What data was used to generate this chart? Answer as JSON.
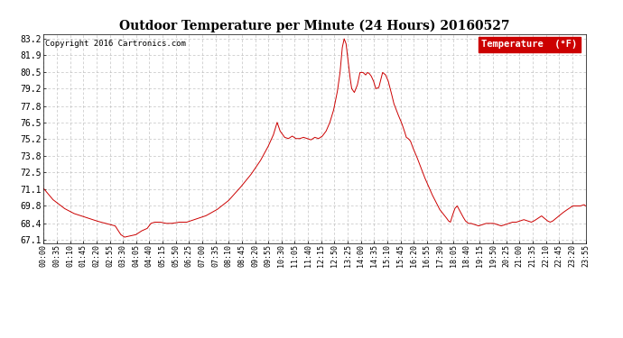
{
  "title": "Outdoor Temperature per Minute (24 Hours) 20160527",
  "copyright_text": "Copyright 2016 Cartronics.com",
  "legend_label": "Temperature  (°F)",
  "line_color": "#cc0000",
  "background_color": "#ffffff",
  "grid_color": "#bbbbbb",
  "yticks": [
    67.1,
    68.4,
    69.8,
    71.1,
    72.5,
    73.8,
    75.2,
    76.5,
    77.8,
    79.2,
    80.5,
    81.9,
    83.2
  ],
  "ylim": [
    66.8,
    83.6
  ],
  "xtick_labels": [
    "00:00",
    "00:35",
    "01:10",
    "01:45",
    "02:20",
    "02:55",
    "03:30",
    "04:05",
    "04:40",
    "05:15",
    "05:50",
    "06:25",
    "07:00",
    "07:35",
    "08:10",
    "08:45",
    "09:20",
    "09:55",
    "10:30",
    "11:05",
    "11:40",
    "12:15",
    "12:50",
    "13:25",
    "14:00",
    "14:35",
    "15:10",
    "15:45",
    "16:20",
    "16:55",
    "17:30",
    "18:05",
    "18:40",
    "19:15",
    "19:50",
    "20:25",
    "21:00",
    "21:35",
    "22:10",
    "22:45",
    "23:20",
    "23:55"
  ],
  "keypoints": [
    [
      0,
      71.2
    ],
    [
      25,
      70.3
    ],
    [
      55,
      69.6
    ],
    [
      80,
      69.2
    ],
    [
      110,
      68.9
    ],
    [
      140,
      68.6
    ],
    [
      165,
      68.4
    ],
    [
      190,
      68.2
    ],
    [
      205,
      67.5
    ],
    [
      215,
      67.3
    ],
    [
      230,
      67.4
    ],
    [
      245,
      67.5
    ],
    [
      260,
      67.8
    ],
    [
      275,
      68.0
    ],
    [
      285,
      68.4
    ],
    [
      295,
      68.5
    ],
    [
      310,
      68.5
    ],
    [
      325,
      68.4
    ],
    [
      340,
      68.4
    ],
    [
      360,
      68.5
    ],
    [
      380,
      68.5
    ],
    [
      400,
      68.7
    ],
    [
      430,
      69.0
    ],
    [
      460,
      69.5
    ],
    [
      490,
      70.2
    ],
    [
      520,
      71.2
    ],
    [
      550,
      72.3
    ],
    [
      575,
      73.4
    ],
    [
      595,
      74.5
    ],
    [
      610,
      75.5
    ],
    [
      620,
      76.5
    ],
    [
      628,
      75.8
    ],
    [
      640,
      75.3
    ],
    [
      650,
      75.2
    ],
    [
      660,
      75.4
    ],
    [
      670,
      75.2
    ],
    [
      680,
      75.2
    ],
    [
      690,
      75.3
    ],
    [
      700,
      75.2
    ],
    [
      710,
      75.1
    ],
    [
      720,
      75.3
    ],
    [
      730,
      75.2
    ],
    [
      740,
      75.4
    ],
    [
      750,
      75.8
    ],
    [
      760,
      76.5
    ],
    [
      770,
      77.5
    ],
    [
      780,
      79.0
    ],
    [
      787,
      80.5
    ],
    [
      793,
      82.5
    ],
    [
      798,
      83.2
    ],
    [
      803,
      82.8
    ],
    [
      808,
      81.5
    ],
    [
      813,
      80.2
    ],
    [
      818,
      79.2
    ],
    [
      825,
      78.9
    ],
    [
      833,
      79.5
    ],
    [
      840,
      80.5
    ],
    [
      848,
      80.5
    ],
    [
      855,
      80.3
    ],
    [
      860,
      80.5
    ],
    [
      865,
      80.4
    ],
    [
      870,
      80.2
    ],
    [
      876,
      79.8
    ],
    [
      882,
      79.2
    ],
    [
      890,
      79.3
    ],
    [
      900,
      80.5
    ],
    [
      908,
      80.3
    ],
    [
      915,
      79.8
    ],
    [
      922,
      79.0
    ],
    [
      930,
      78.0
    ],
    [
      940,
      77.2
    ],
    [
      950,
      76.5
    ],
    [
      958,
      75.8
    ],
    [
      963,
      75.3
    ],
    [
      968,
      75.2
    ],
    [
      974,
      75.0
    ],
    [
      980,
      74.5
    ],
    [
      990,
      73.8
    ],
    [
      1000,
      73.0
    ],
    [
      1010,
      72.2
    ],
    [
      1020,
      71.5
    ],
    [
      1030,
      70.8
    ],
    [
      1040,
      70.2
    ],
    [
      1052,
      69.5
    ],
    [
      1060,
      69.2
    ],
    [
      1068,
      68.9
    ],
    [
      1075,
      68.6
    ],
    [
      1080,
      68.5
    ],
    [
      1085,
      69.0
    ],
    [
      1092,
      69.6
    ],
    [
      1098,
      69.8
    ],
    [
      1105,
      69.4
    ],
    [
      1112,
      69.0
    ],
    [
      1120,
      68.6
    ],
    [
      1128,
      68.4
    ],
    [
      1135,
      68.4
    ],
    [
      1145,
      68.3
    ],
    [
      1155,
      68.2
    ],
    [
      1165,
      68.3
    ],
    [
      1175,
      68.4
    ],
    [
      1185,
      68.4
    ],
    [
      1195,
      68.4
    ],
    [
      1205,
      68.3
    ],
    [
      1215,
      68.2
    ],
    [
      1225,
      68.3
    ],
    [
      1235,
      68.4
    ],
    [
      1245,
      68.5
    ],
    [
      1255,
      68.5
    ],
    [
      1265,
      68.6
    ],
    [
      1275,
      68.7
    ],
    [
      1285,
      68.6
    ],
    [
      1295,
      68.5
    ],
    [
      1302,
      68.6
    ],
    [
      1312,
      68.8
    ],
    [
      1322,
      69.0
    ],
    [
      1330,
      68.8
    ],
    [
      1338,
      68.6
    ],
    [
      1345,
      68.5
    ],
    [
      1352,
      68.6
    ],
    [
      1360,
      68.8
    ],
    [
      1368,
      69.0
    ],
    [
      1376,
      69.2
    ],
    [
      1385,
      69.4
    ],
    [
      1395,
      69.6
    ],
    [
      1405,
      69.8
    ],
    [
      1415,
      69.8
    ],
    [
      1425,
      69.8
    ],
    [
      1435,
      69.9
    ],
    [
      1439,
      69.8
    ]
  ]
}
